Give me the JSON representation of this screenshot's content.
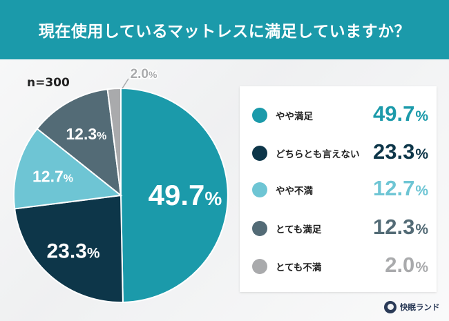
{
  "header": {
    "title": "現在使用しているマットレスに満足していますか？"
  },
  "sample": {
    "label": "n=300"
  },
  "legend": {
    "items": [
      "やや満足",
      "どちらとも言えない",
      "やや不満",
      "とても満足",
      "とても不満"
    ]
  },
  "chart_data": {
    "type": "pie",
    "categories": [
      "やや満足",
      "どちらとも言えない",
      "やや不満",
      "とても満足",
      "とても不満"
    ],
    "values": [
      49.7,
      23.3,
      12.7,
      12.3,
      2.0
    ],
    "unit": "%",
    "colors": [
      "#1b9aaa",
      "#0d3649",
      "#6ec5d4",
      "#536b76",
      "#a9aaac"
    ],
    "legend_position": "right"
  },
  "logo": {
    "text": "快眠ランド"
  }
}
